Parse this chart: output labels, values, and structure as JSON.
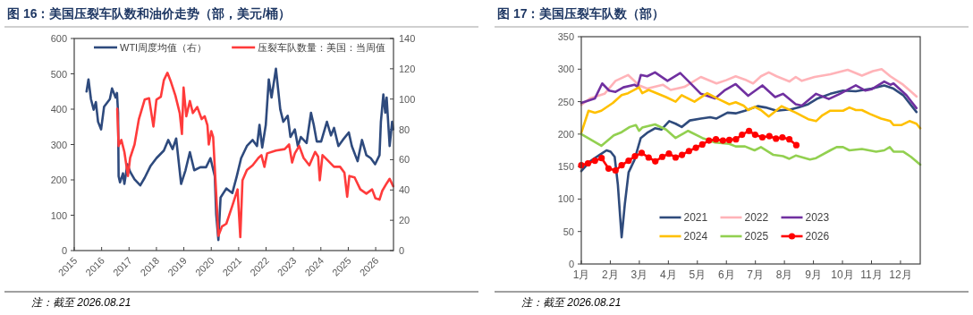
{
  "chart_data": [
    {
      "type": "line",
      "title": "图 16：美国压裂车队数和油价走势（部，美元/桶）",
      "legend": "top",
      "xlim": [
        2015,
        2026.65
      ],
      "xticks": [
        2015,
        2016,
        2017,
        2018,
        2019,
        2020,
        2021,
        2022,
        2023,
        2024,
        2025,
        2026
      ],
      "ylim": [
        0,
        600
      ],
      "yticks": [
        0,
        100,
        200,
        300,
        400,
        500,
        600
      ],
      "y2lim": [
        0,
        140
      ],
      "y2ticks": [
        0,
        20,
        40,
        60,
        80,
        100,
        120,
        140
      ],
      "annotations": [
        "注：截至 2026.08.21"
      ],
      "series": [
        {
          "name": "WTI周度均值（右）",
          "color": "#2e4a7d",
          "axis": "y2",
          "x": [
            2015.45,
            2015.52,
            2015.61,
            2015.71,
            2015.79,
            2015.87,
            2015.98,
            2016.09,
            2016.3,
            2016.38,
            2016.51,
            2016.56,
            2016.6,
            2016.62,
            2016.67,
            2016.78,
            2016.83,
            2016.94,
            2017.04,
            2017.2,
            2017.41,
            2017.57,
            2017.79,
            2018.0,
            2018.27,
            2018.43,
            2018.59,
            2018.72,
            2018.9,
            2019.06,
            2019.22,
            2019.38,
            2019.6,
            2019.81,
            2019.97,
            2020.13,
            2020.18,
            2020.26,
            2020.34,
            2020.55,
            2020.77,
            2020.93,
            2021.09,
            2021.3,
            2021.51,
            2021.67,
            2021.76,
            2021.86,
            2021.99,
            2022.1,
            2022.2,
            2022.36,
            2022.52,
            2022.63,
            2022.79,
            2022.89,
            2023.05,
            2023.16,
            2023.27,
            2023.48,
            2023.64,
            2023.74,
            2023.85,
            2024.01,
            2024.22,
            2024.37,
            2024.48,
            2024.64,
            2024.8,
            2025.02,
            2025.13,
            2025.34,
            2025.5,
            2025.66,
            2025.82,
            2025.98,
            2026.14,
            2026.19,
            2026.28,
            2026.35,
            2026.4,
            2026.51,
            2026.6,
            2026.64
          ],
          "values": [
            105,
            113,
            100,
            93,
            98,
            85,
            80,
            95,
            100,
            107,
            101,
            104,
            91,
            49,
            45,
            51,
            44,
            57,
            52,
            47,
            43,
            48,
            56,
            61,
            66,
            73,
            67,
            74,
            44,
            53,
            65,
            53,
            55,
            55,
            61,
            49,
            24,
            7,
            35,
            41,
            38,
            49,
            61,
            69,
            73,
            69,
            83,
            68,
            83,
            113,
            101,
            120,
            93,
            85,
            89,
            75,
            80,
            69,
            75,
            71,
            91,
            83,
            72,
            72,
            85,
            76,
            81,
            69,
            73,
            78,
            69,
            59,
            73,
            63,
            61,
            57,
            63,
            85,
            103,
            91,
            101,
            69,
            85,
            80
          ]
        },
        {
          "name": "压裂车队数量：美国：当周值",
          "color": "#ff3b3b",
          "x": [
            2016.57,
            2016.62,
            2016.72,
            2016.83,
            2016.96,
            2017.04,
            2017.2,
            2017.36,
            2017.57,
            2017.73,
            2017.89,
            2018.0,
            2018.16,
            2018.27,
            2018.4,
            2018.53,
            2018.69,
            2018.85,
            2018.93,
            2018.99,
            2019.09,
            2019.22,
            2019.33,
            2019.49,
            2019.65,
            2019.76,
            2019.86,
            2019.91,
            2020.0,
            2020.07,
            2020.18,
            2020.26,
            2020.39,
            2020.55,
            2020.77,
            2020.96,
            2021.06,
            2021.14,
            2021.3,
            2021.51,
            2021.72,
            2021.83,
            2021.94,
            2022.04,
            2022.36,
            2022.68,
            2022.84,
            2022.95,
            2023.05,
            2023.21,
            2023.37,
            2023.58,
            2023.79,
            2023.9,
            2023.96,
            2024.06,
            2024.28,
            2024.48,
            2024.7,
            2024.86,
            2024.96,
            2025.04,
            2025.23,
            2025.44,
            2025.66,
            2025.87,
            2025.99,
            2026.14,
            2026.24,
            2026.4,
            2026.51,
            2026.64
          ],
          "values": [
            401,
            296,
            313,
            279,
            211,
            262,
            300,
            372,
            427,
            431,
            351,
            427,
            435,
            482,
            503,
            477,
            439,
            389,
            330,
            461,
            380,
            423,
            389,
            406,
            372,
            380,
            355,
            300,
            338,
            321,
            161,
            42,
            68,
            76,
            127,
            173,
            38,
            199,
            228,
            241,
            262,
            270,
            237,
            275,
            283,
            287,
            300,
            249,
            275,
            296,
            262,
            241,
            279,
            266,
            199,
            270,
            253,
            237,
            237,
            220,
            152,
            211,
            207,
            173,
            161,
            173,
            148,
            144,
            169,
            190,
            203,
            182
          ]
        }
      ]
    },
    {
      "type": "line",
      "title": "图 17：美国压裂车队数（部）",
      "legend": "bottom",
      "xlim": [
        1,
        12.68
      ],
      "xticks": [
        {
          "value": 1,
          "label": "1月"
        },
        {
          "value": 2,
          "label": "2月"
        },
        {
          "value": 3,
          "label": "3月"
        },
        {
          "value": 4,
          "label": "4月"
        },
        {
          "value": 5,
          "label": "5月"
        },
        {
          "value": 6,
          "label": "6月"
        },
        {
          "value": 7,
          "label": "7月"
        },
        {
          "value": 8,
          "label": "8月"
        },
        {
          "value": 9,
          "label": "9月"
        },
        {
          "value": 10,
          "label": "10月"
        },
        {
          "value": 11,
          "label": "11月"
        },
        {
          "value": 12,
          "label": "12月"
        }
      ],
      "ylim": [
        0,
        350
      ],
      "yticks": [
        0,
        50,
        100,
        150,
        200,
        250,
        300,
        350
      ],
      "annotations": [
        "注：截至 2026.08.21"
      ],
      "series": [
        {
          "name": "2021",
          "color": "#2f4b7c",
          "x": [
            1.0,
            1.3,
            1.63,
            1.87,
            2.01,
            2.15,
            2.26,
            2.39,
            2.5,
            2.63,
            2.83,
            3.05,
            3.27,
            3.54,
            3.76,
            4.03,
            4.25,
            4.46,
            4.74,
            5.12,
            5.44,
            5.66,
            6.04,
            6.32,
            6.64,
            7.08,
            7.35,
            7.73,
            7.95,
            8.22,
            8.49,
            8.82,
            9.15,
            9.58,
            10.02,
            10.46,
            11.0,
            11.44,
            11.76,
            12.09,
            12.55
          ],
          "values": [
            143,
            158,
            168,
            175,
            173,
            165,
            122,
            41,
            92,
            141,
            160,
            194,
            202,
            209,
            207,
            220,
            216,
            211,
            221,
            224,
            226,
            224,
            233,
            232,
            236,
            243,
            241,
            236,
            237,
            238,
            241,
            246,
            255,
            262,
            267,
            266,
            270,
            275,
            270,
            260,
            234
          ]
        },
        {
          "name": "2022",
          "color": "#ffb3b8",
          "x": [
            1.0,
            1.3,
            1.8,
            2.18,
            2.61,
            3.0,
            3.27,
            3.81,
            4.08,
            4.57,
            5.12,
            5.66,
            5.99,
            6.32,
            6.64,
            6.92,
            7.19,
            7.46,
            7.73,
            8.17,
            8.39,
            8.6,
            9.04,
            9.58,
            10.18,
            10.67,
            11.05,
            11.35,
            11.65,
            12.09,
            12.55
          ],
          "values": [
            245,
            255,
            262,
            282,
            291,
            275,
            270,
            276,
            268,
            273,
            288,
            278,
            283,
            289,
            284,
            278,
            289,
            295,
            289,
            281,
            288,
            282,
            288,
            292,
            299,
            290,
            297,
            300,
            289,
            276,
            258
          ]
        },
        {
          "name": "2023",
          "color": "#7030a0",
          "x": [
            1.0,
            1.47,
            1.72,
            1.96,
            2.18,
            2.45,
            2.83,
            2.94,
            3.05,
            3.27,
            3.54,
            3.97,
            4.41,
            4.68,
            5.12,
            5.61,
            5.93,
            6.32,
            6.75,
            7.24,
            7.68,
            7.95,
            8.39,
            8.6,
            9.09,
            9.53,
            9.91,
            10.46,
            10.78,
            11.0,
            11.44,
            11.65,
            11.76,
            12.2,
            12.55
          ],
          "values": [
            248,
            255,
            278,
            267,
            265,
            272,
            276,
            273,
            291,
            289,
            295,
            282,
            294,
            282,
            262,
            255,
            267,
            277,
            259,
            275,
            257,
            262,
            246,
            244,
            262,
            254,
            262,
            275,
            267,
            269,
            281,
            276,
            278,
            260,
            240
          ]
        },
        {
          "name": "2024",
          "color": "#ffc000",
          "x": [
            1.0,
            1.25,
            1.47,
            1.69,
            2.09,
            2.39,
            2.61,
            2.99,
            3.1,
            3.32,
            3.92,
            4.25,
            4.46,
            4.9,
            5.34,
            5.72,
            6.1,
            6.32,
            6.59,
            6.75,
            6.97,
            7.19,
            7.46,
            7.9,
            8.39,
            8.82,
            9.09,
            9.31,
            9.58,
            10.02,
            10.24,
            10.46,
            10.67,
            10.95,
            11.33,
            11.65,
            11.76,
            12.04,
            12.31,
            12.55,
            12.68
          ],
          "values": [
            202,
            236,
            233,
            236,
            248,
            260,
            263,
            272,
            263,
            268,
            257,
            250,
            260,
            250,
            263,
            254,
            246,
            249,
            244,
            237,
            242,
            237,
            227,
            243,
            233,
            223,
            220,
            229,
            236,
            236,
            241,
            237,
            237,
            231,
            224,
            220,
            214,
            214,
            220,
            216,
            209
          ]
        },
        {
          "name": "2025",
          "color": "#92d050",
          "x": [
            1.0,
            1.69,
            2.12,
            2.39,
            2.67,
            2.88,
            2.99,
            3.1,
            3.54,
            3.92,
            4.25,
            4.68,
            5.17,
            5.61,
            6.1,
            6.32,
            6.64,
            6.97,
            7.19,
            7.62,
            7.95,
            8.17,
            8.39,
            8.88,
            9.09,
            9.58,
            9.8,
            10.02,
            10.24,
            10.67,
            11.16,
            11.44,
            11.63,
            11.76,
            12.09,
            12.36,
            12.68
          ],
          "values": [
            200,
            182,
            198,
            203,
            211,
            214,
            205,
            210,
            215,
            207,
            194,
            205,
            194,
            187,
            185,
            181,
            181,
            175,
            180,
            168,
            166,
            162,
            167,
            161,
            163,
            175,
            180,
            180,
            175,
            177,
            173,
            175,
            180,
            173,
            173,
            165,
            153
          ]
        },
        {
          "name": "2026",
          "color": "#ff0000",
          "marker": "circle",
          "x": [
            1.0,
            1.23,
            1.47,
            1.7,
            1.94,
            2.18,
            2.39,
            2.63,
            2.85,
            3.08,
            3.32,
            3.55,
            3.79,
            4.02,
            4.25,
            4.47,
            4.71,
            4.95,
            5.17,
            5.4,
            5.64,
            5.88,
            6.1,
            6.33,
            6.54,
            6.78,
            6.99,
            7.24,
            7.48,
            7.71,
            7.93,
            8.17,
            8.41
          ],
          "values": [
            152,
            155,
            159,
            163,
            147,
            144,
            152,
            159,
            166,
            171,
            164,
            158,
            165,
            170,
            164,
            168,
            174,
            179,
            184,
            190,
            192,
            190,
            191,
            192,
            199,
            205,
            199,
            195,
            197,
            193,
            195,
            192,
            183
          ]
        }
      ]
    }
  ]
}
